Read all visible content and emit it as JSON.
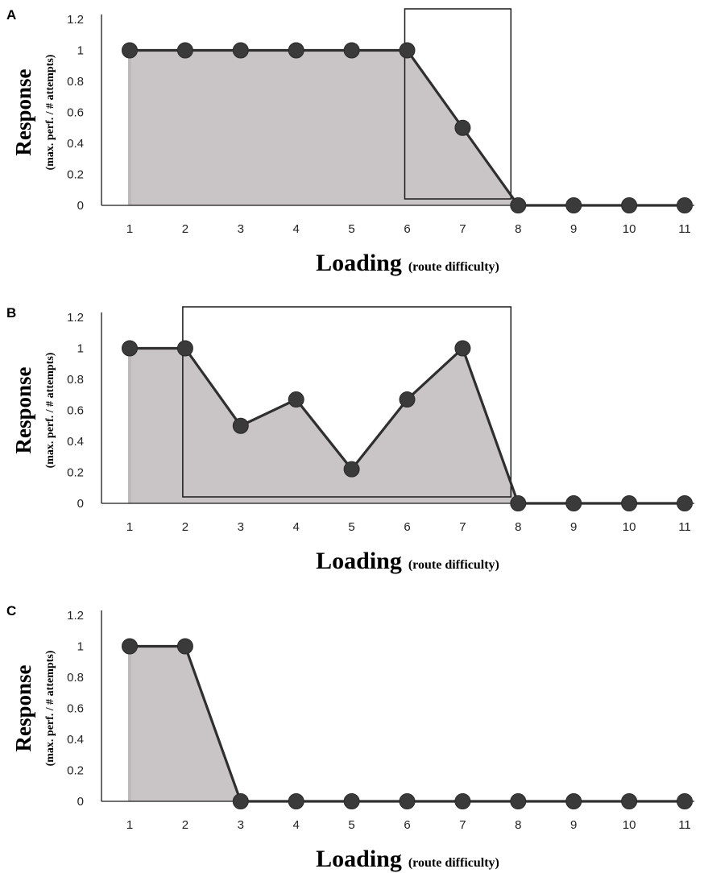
{
  "chart_data": [
    {
      "panel": "A",
      "type": "line",
      "x": [
        "1",
        "2",
        "3",
        "4",
        "5",
        "6",
        "7",
        "8",
        "9",
        "10",
        "11"
      ],
      "series": [
        {
          "values": [
            1,
            1,
            1,
            1,
            1,
            1,
            0.5,
            0,
            0,
            0,
            0
          ]
        }
      ],
      "area_fill_under_line": true,
      "highlight_box_x_range": [
        "6",
        "8"
      ],
      "xlabel": "Loading",
      "xlabel_note": "(route difficulty)",
      "ylabel": "Response",
      "ylabel_note": "(max. perf. / # attempts)",
      "yticks": [
        "0",
        "0.2",
        "0.4",
        "0.6",
        "0.8",
        "1",
        "1.2"
      ],
      "ylim": [
        0,
        1.2
      ],
      "grid": false
    },
    {
      "panel": "B",
      "type": "line",
      "x": [
        "1",
        "2",
        "3",
        "4",
        "5",
        "6",
        "7",
        "8",
        "9",
        "10",
        "11"
      ],
      "series": [
        {
          "values": [
            1,
            1,
            0.5,
            0.67,
            0.22,
            0.67,
            1,
            0,
            0,
            0,
            0
          ]
        }
      ],
      "area_fill_under_line": true,
      "highlight_box_x_range": [
        "2",
        "8"
      ],
      "xlabel": "Loading",
      "xlabel_note": "(route difficulty)",
      "ylabel": "Response",
      "ylabel_note": "(max. perf. / # attempts)",
      "yticks": [
        "0",
        "0.2",
        "0.4",
        "0.6",
        "0.8",
        "1",
        "1.2"
      ],
      "ylim": [
        0,
        1.2
      ],
      "grid": false
    },
    {
      "panel": "C",
      "type": "line",
      "x": [
        "1",
        "2",
        "3",
        "4",
        "5",
        "6",
        "7",
        "8",
        "9",
        "10",
        "11"
      ],
      "series": [
        {
          "values": [
            1,
            1,
            0,
            0,
            0,
            0,
            0,
            0,
            0,
            0,
            0
          ]
        }
      ],
      "area_fill_under_line": true,
      "xlabel": "Loading",
      "xlabel_note": "(route difficulty)",
      "ylabel": "Response",
      "ylabel_note": "(max. perf. / # attempts)",
      "yticks": [
        "0",
        "0.2",
        "0.4",
        "0.6",
        "0.8",
        "1",
        "1.2"
      ],
      "ylim": [
        0,
        1.2
      ],
      "grid": false
    }
  ],
  "colors": {
    "area_fill": "#c9c4c6",
    "area_edge": "#bdb8ba",
    "line": "#2f2f2f",
    "marker": "#3a3a3a",
    "axis": "#1a1a1a"
  }
}
